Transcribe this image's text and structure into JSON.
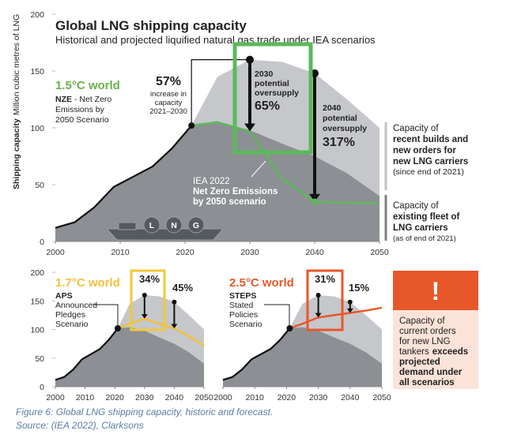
{
  "chart_data": [
    {
      "type": "area",
      "title": "Global LNG shipping capacity",
      "subtitle": "Historical and projected liquified natural gas trade under IEA scenarios",
      "y_label": [
        "Shipping capacity",
        "Million cubic metres of LNG"
      ],
      "x": [
        2000,
        2003,
        2006,
        2009,
        2012,
        2015,
        2018,
        2021,
        2025,
        2030,
        2035,
        2040,
        2045,
        2050
      ],
      "xlim": [
        2000,
        2050
      ],
      "xticks": [
        2000,
        2010,
        2020,
        2030,
        2040,
        2050
      ],
      "ylim": [
        0,
        200
      ],
      "yticks": [
        0,
        50,
        100,
        150,
        200
      ],
      "series": [
        {
          "color": "#c5c7cb",
          "style": "area",
          "values": [
            null,
            null,
            null,
            null,
            null,
            null,
            null,
            102,
            145,
            160,
            158,
            148,
            125,
            100
          ]
        },
        {
          "color": "#8c8f93",
          "style": "area",
          "values": [
            12,
            17,
            30,
            48,
            57,
            66,
            82,
            102,
            104,
            98,
            86,
            75,
            60,
            40
          ]
        },
        {
          "color": "#111111",
          "style": "line",
          "values": [
            12,
            17,
            30,
            48,
            57,
            66,
            82,
            102,
            null,
            null,
            null,
            null,
            null,
            null
          ]
        },
        {
          "color": "#5cb85c",
          "style": "line",
          "values": [
            null,
            null,
            null,
            null,
            null,
            null,
            null,
            102,
            105,
            97,
            55,
            35,
            34,
            34
          ]
        }
      ],
      "scenario": {
        "title": "1.5°C world",
        "code": "NZE",
        "lines": [
          "- Net Zero",
          "Emissions by",
          "2050 Scenario"
        ]
      },
      "increase": {
        "value_label": "57%",
        "lines": [
          "increase in",
          "capacity",
          "2021–2030"
        ]
      },
      "oversupply": [
        {
          "lines": [
            "2030",
            "potential",
            "oversupply"
          ],
          "value_label": "65%"
        },
        {
          "lines": [
            "2040",
            "potential",
            "oversupply"
          ],
          "value_label": "317%"
        }
      ],
      "scenario_label": [
        "IEA 2022",
        "Net Zero Emissions",
        "by 2050 scenario"
      ],
      "fleet_notes": [
        [
          "Capacity of",
          "recent builds and",
          "new orders for",
          "new LNG carriers",
          "(since end of 2021)"
        ],
        [
          "Capacity of",
          "existing fleet of",
          "LNG carriers",
          "(as of end of 2021)"
        ]
      ],
      "ship_labels": [
        "L",
        "N",
        "G"
      ]
    },
    {
      "type": "area",
      "x": [
        2000,
        2003,
        2006,
        2009,
        2012,
        2015,
        2018,
        2021,
        2025,
        2030,
        2035,
        2040,
        2045,
        2050
      ],
      "xlim": [
        2000,
        2050
      ],
      "xticks": [
        2000,
        2010,
        2020,
        2030,
        2040,
        2050
      ],
      "ylim": [
        0,
        200
      ],
      "yticks": [
        0,
        50,
        100,
        150,
        200
      ],
      "series": [
        {
          "color": "#c5c7cb",
          "style": "area",
          "values": [
            null,
            null,
            null,
            null,
            null,
            null,
            null,
            102,
            145,
            160,
            158,
            148,
            125,
            100
          ]
        },
        {
          "color": "#8c8f93",
          "style": "area",
          "values": [
            12,
            17,
            30,
            48,
            57,
            66,
            82,
            102,
            104,
            98,
            86,
            75,
            60,
            40
          ]
        },
        {
          "color": "#111111",
          "style": "line",
          "values": [
            12,
            17,
            30,
            48,
            57,
            66,
            82,
            102,
            null,
            null,
            null,
            null,
            null,
            null
          ]
        },
        {
          "color": "#f2c23a",
          "style": "line",
          "values": [
            null,
            null,
            null,
            null,
            null,
            null,
            null,
            102,
            110,
            119,
            110,
            102,
            88,
            72
          ]
        }
      ],
      "scenario": {
        "title": "1.7°C world",
        "code": "APS",
        "lines": [
          "Announced",
          "Pledges",
          "Scenario"
        ]
      },
      "oversupply": [
        {
          "value_label": "34%"
        },
        {
          "value_label": "45%"
        }
      ]
    },
    {
      "type": "area",
      "x": [
        2000,
        2003,
        2006,
        2009,
        2012,
        2015,
        2018,
        2021,
        2025,
        2030,
        2035,
        2040,
        2045,
        2050
      ],
      "xlim": [
        2000,
        2050
      ],
      "xticks": [
        2000,
        2010,
        2020,
        2030,
        2040,
        2050
      ],
      "ylim": [
        0,
        200
      ],
      "series": [
        {
          "color": "#c5c7cb",
          "style": "area",
          "values": [
            null,
            null,
            null,
            null,
            null,
            null,
            null,
            102,
            145,
            160,
            158,
            148,
            125,
            100
          ]
        },
        {
          "color": "#8c8f93",
          "style": "area",
          "values": [
            12,
            17,
            30,
            48,
            57,
            66,
            82,
            102,
            104,
            98,
            86,
            75,
            60,
            40
          ]
        },
        {
          "color": "#111111",
          "style": "line",
          "values": [
            12,
            17,
            30,
            48,
            57,
            66,
            82,
            102,
            null,
            null,
            null,
            null,
            null,
            null
          ]
        },
        {
          "color": "#e8572a",
          "style": "line",
          "values": [
            null,
            null,
            null,
            null,
            null,
            null,
            null,
            102,
            110,
            121,
            125,
            129,
            133,
            138
          ]
        }
      ],
      "scenario": {
        "title": "2.5°C world",
        "code": "STEPS",
        "lines": [
          "Stated",
          "Policies",
          "Scenario"
        ]
      },
      "oversupply": [
        {
          "value_label": "31%"
        },
        {
          "value_label": "15%"
        }
      ]
    }
  ],
  "callout": {
    "icon": "!",
    "lines": [
      "Capacity of",
      "current orders",
      "for new LNG",
      "tankers",
      "exceeds",
      "projected",
      "demand under",
      "all scenarios"
    ]
  },
  "caption": [
    "Figure 6: Global LNG shipping capacity, historic and forecast.",
    "Source: (IEA 2022), Clarksons"
  ]
}
